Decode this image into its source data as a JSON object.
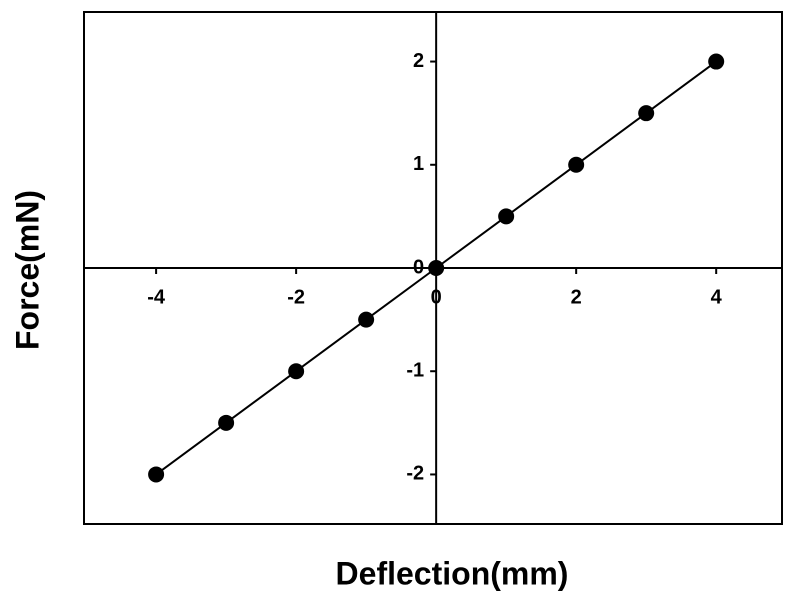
{
  "chart_data": {
    "type": "scatter-line",
    "x_label": "Deflection(mm)",
    "y_label": "Force(mN)",
    "series": [
      {
        "x": [
          -4,
          -3,
          -2,
          -1,
          0,
          1,
          2,
          3,
          4
        ],
        "values": [
          -2,
          -1.5,
          -1,
          -0.5,
          0,
          0.5,
          1,
          1.5,
          2
        ],
        "color": "#000000"
      }
    ],
    "xlim": [
      -5.03,
      4.94
    ],
    "ylim": [
      -2.48,
      2.48
    ],
    "xticks": [
      -4,
      -2,
      0,
      2,
      4
    ],
    "yticks": [
      -2,
      -1,
      0,
      1,
      2
    ]
  }
}
